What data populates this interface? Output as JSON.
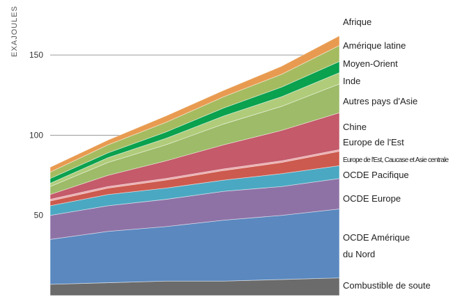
{
  "chart_data": {
    "type": "area",
    "stacked": true,
    "ylabel": "EXAJOULES",
    "ylim": [
      0,
      180
    ],
    "yticks": [
      50,
      100,
      150
    ],
    "gridlines": [
      100,
      150
    ],
    "series": [
      {
        "name": "Combustible de soute",
        "color": "#6b6b6b",
        "values": [
          7,
          8,
          9,
          9,
          10,
          11
        ]
      },
      {
        "name": "OCDE Amérique du Nord",
        "color": "#5a88bf",
        "values": [
          28,
          32,
          34,
          38,
          40,
          43
        ]
      },
      {
        "name": "OCDE Europe",
        "color": "#8e72a6",
        "values": [
          15,
          16,
          17,
          18,
          18,
          19
        ]
      },
      {
        "name": "OCDE Pacifique",
        "color": "#4aa8c2",
        "values": [
          6,
          7,
          7,
          7,
          8,
          8
        ]
      },
      {
        "name": "Europe de l'Est, Caucase et Asie centrale",
        "color": "#cd5a4e",
        "values": [
          3,
          4,
          5,
          6,
          7,
          9
        ]
      },
      {
        "name": "Europe de l'Est",
        "color": "#e9a4a6",
        "values": [
          1,
          1,
          1,
          1,
          1,
          1
        ]
      },
      {
        "name": "Chine",
        "color": "#c45a6a",
        "values": [
          3,
          7,
          11,
          15,
          19,
          23
        ]
      },
      {
        "name": "Autres pays d'Asie",
        "color": "#9dbb68",
        "values": [
          5,
          8,
          10,
          13,
          15,
          18
        ]
      },
      {
        "name": "Inde",
        "color": "#b0cc7a",
        "values": [
          2,
          3,
          4,
          5,
          6,
          7
        ]
      },
      {
        "name": "Moyen-Orient",
        "color": "#0aa14f",
        "values": [
          3,
          3,
          4,
          5,
          6,
          7
        ]
      },
      {
        "name": "Amérique latine",
        "color": "#a5bb60",
        "values": [
          4,
          5,
          6,
          7,
          8,
          10
        ]
      },
      {
        "name": "Afrique",
        "color": "#e89b50",
        "values": [
          3,
          3,
          4,
          4,
          5,
          6
        ]
      }
    ],
    "legend": [
      {
        "lines": [
          "Afrique"
        ],
        "size": "normal"
      },
      {
        "lines": [
          "Amérique latine"
        ],
        "size": "normal"
      },
      {
        "lines": [
          "Moyen-Orient"
        ],
        "size": "normal"
      },
      {
        "lines": [
          "Inde"
        ],
        "size": "normal"
      },
      {
        "lines": [
          "Autres pays d'Asie"
        ],
        "size": "normal"
      },
      {
        "lines": [
          "Chine"
        ],
        "size": "normal"
      },
      {
        "lines": [
          "Europe de l'Est"
        ],
        "size": "normal"
      },
      {
        "lines": [
          "Europe de l'Est, Caucase et Asie centrale"
        ],
        "size": "small"
      },
      {
        "lines": [
          "OCDE Pacifique"
        ],
        "size": "normal"
      },
      {
        "lines": [
          "OCDE Europe"
        ],
        "size": "normal"
      },
      {
        "lines": [
          "OCDE Amérique",
          "du Nord"
        ],
        "size": "normal"
      },
      {
        "lines": [
          "Combustible de soute"
        ],
        "size": "normal"
      }
    ]
  }
}
